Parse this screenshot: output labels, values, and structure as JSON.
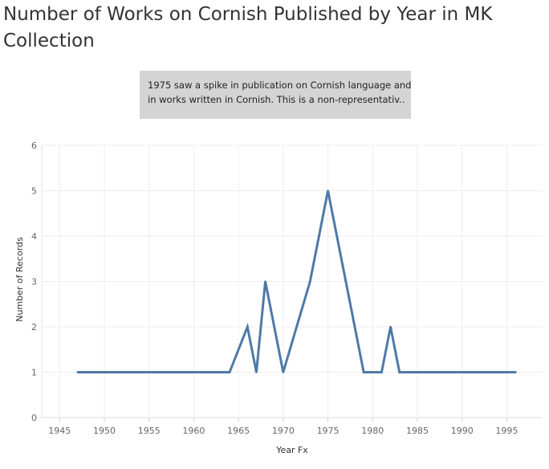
{
  "page": {
    "title": "Number of Works on Cornish Published by Year in MK Collection",
    "annotation": {
      "line1": "1975 saw a spike in publication on Cornish language and",
      "line2": "in works written in Cornish. This is a non-representativ.."
    }
  },
  "chart_data": {
    "type": "line",
    "title": "Number of Works on Cornish Published by Year in MK Collection",
    "xlabel": "Year Fx",
    "ylabel": "Number of Records",
    "xlim": [
      1943,
      1999
    ],
    "ylim": [
      0,
      6
    ],
    "xticks": [
      "1945",
      "1950",
      "1955",
      "1960",
      "1965",
      "1970",
      "1975",
      "1980",
      "1985",
      "1990",
      "1995"
    ],
    "yticks": [
      "0",
      "1",
      "2",
      "3",
      "4",
      "5",
      "6"
    ],
    "grid": true,
    "series": [
      {
        "color": "#4e79a7",
        "points": [
          [
            1947,
            1
          ],
          [
            1964,
            1
          ],
          [
            1966,
            2
          ],
          [
            1967,
            1
          ],
          [
            1968,
            3
          ],
          [
            1970,
            1
          ],
          [
            1973,
            3
          ],
          [
            1975,
            5
          ],
          [
            1977,
            3
          ],
          [
            1979,
            1
          ],
          [
            1981,
            1
          ],
          [
            1982,
            2
          ],
          [
            1983,
            1
          ],
          [
            1996,
            1
          ]
        ]
      }
    ]
  }
}
